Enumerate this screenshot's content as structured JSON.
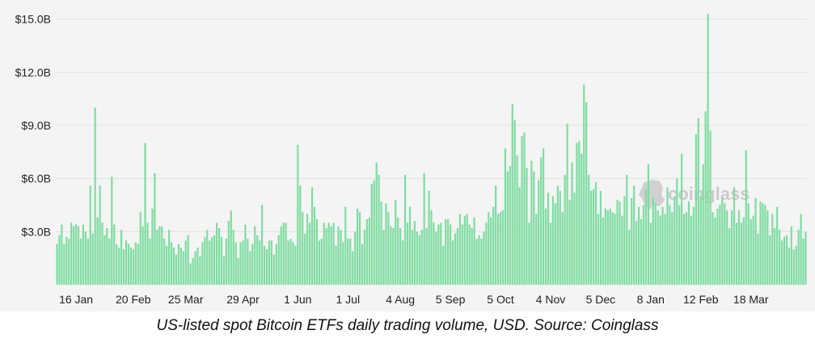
{
  "chart_data": {
    "type": "bar",
    "title": "",
    "xlabel": "",
    "ylabel": "",
    "ylim": [
      0,
      15.3
    ],
    "y_ticks": [
      3,
      6,
      9,
      12,
      15
    ],
    "y_tick_labels": [
      "$3.0B",
      "$6.0B",
      "$9.0B",
      "$12.0B",
      "$15.0B"
    ],
    "x_tick_labels": [
      "16 Jan",
      "20 Feb",
      "25 Mar",
      "29 Apr",
      "1 Jun",
      "1 Jul",
      "4 Aug",
      "5 Sep",
      "5 Oct",
      "4 Nov",
      "5 Dec",
      "8 Jan",
      "12 Feb",
      "18 Mar"
    ],
    "x_tick_bar_index": [
      8,
      32,
      54,
      78,
      101,
      122,
      144,
      165,
      186,
      207,
      228,
      249,
      270,
      291
    ],
    "series": [
      {
        "name": "Daily trading volume (USD billions)",
        "values": [
          2.3,
          2.8,
          3.4,
          2.3,
          2.7,
          2.6,
          3.5,
          3.3,
          3.4,
          3.3,
          2.6,
          3.4,
          3.0,
          2.6,
          5.6,
          2.9,
          10.0,
          3.8,
          5.6,
          3.5,
          2.8,
          3.2,
          2.6,
          6.1,
          3.4,
          2.3,
          2.1,
          3.1,
          2.0,
          2.5,
          2.3,
          2.1,
          2.0,
          2.4,
          2.3,
          4.1,
          3.3,
          8.0,
          3.5,
          2.6,
          4.3,
          6.3,
          3.1,
          3.3,
          3.3,
          2.6,
          2.2,
          3.1,
          2.4,
          2.1,
          1.7,
          2.3,
          2.1,
          1.9,
          2.5,
          2.8,
          1.2,
          1.5,
          1.9,
          2.1,
          1.6,
          2.4,
          2.7,
          3.1,
          2.5,
          2.7,
          2.8,
          3.5,
          3.2,
          2.7,
          1.6,
          2.6,
          3.6,
          4.2,
          3.1,
          2.4,
          1.5,
          2.4,
          2.5,
          3.4,
          2.6,
          1.9,
          2.3,
          3.3,
          2.8,
          2.5,
          4.5,
          2.2,
          2.0,
          2.5,
          2.5,
          1.7,
          2.3,
          2.8,
          3.3,
          3.5,
          3.5,
          2.5,
          2.6,
          2.4,
          2.2,
          7.9,
          5.6,
          4.1,
          2.9,
          4.0,
          3.5,
          5.5,
          4.4,
          3.7,
          2.5,
          2.6,
          3.5,
          3.2,
          3.5,
          3.3,
          3.5,
          2.2,
          3.3,
          3.1,
          2.4,
          4.4,
          2.6,
          2.6,
          1.9,
          3.0,
          4.3,
          4.1,
          2.3,
          3.1,
          3.7,
          3.8,
          5.7,
          5.9,
          6.9,
          6.2,
          4.7,
          3.1,
          4.6,
          4.1,
          3.3,
          3.2,
          4.8,
          3.8,
          3.2,
          2.5,
          6.2,
          3.5,
          4.4,
          3.1,
          3.6,
          3.0,
          2.8,
          3.1,
          6.3,
          3.2,
          5.3,
          4.2,
          3.5,
          3.0,
          3.4,
          3.5,
          2.2,
          3.7,
          3.7,
          3.4,
          2.5,
          2.9,
          3.2,
          4.0,
          3.4,
          3.9,
          4.0,
          3.4,
          3.2,
          3.8,
          2.6,
          2.8,
          2.6,
          3.0,
          3.5,
          4.1,
          3.8,
          4.4,
          5.6,
          4.0,
          4.1,
          4.2,
          7.7,
          6.4,
          6.7,
          10.2,
          9.3,
          7.3,
          5.5,
          8.4,
          8.6,
          6.6,
          3.5,
          7.0,
          6.4,
          4.0,
          5.9,
          7.2,
          7.7,
          4.3,
          5.2,
          3.5,
          5.0,
          4.6,
          5.6,
          5.3,
          4.1,
          6.2,
          9.1,
          4.8,
          6.9,
          5.2,
          8.0,
          8.1,
          7.4,
          11.3,
          10.3,
          6.2,
          5.3,
          5.4,
          5.8,
          4.0,
          5.3,
          3.8,
          4.3,
          4.2,
          4.3,
          4.1,
          4.0,
          4.8,
          4.7,
          3.9,
          5.0,
          6.2,
          3.1,
          4.9,
          5.6,
          3.6,
          4.4,
          3.7,
          4.5,
          5.4,
          6.8,
          3.5,
          4.9,
          4.6,
          4.2,
          3.9,
          4.4,
          4.0,
          5.5,
          4.5,
          4.1,
          5.0,
          6.0,
          4.5,
          7.4,
          4.0,
          4.1,
          4.7,
          3.9,
          4.4,
          8.5,
          9.4,
          5.0,
          6.8,
          9.8,
          15.3,
          8.7,
          4.1,
          3.8,
          4.3,
          4.5,
          4.9,
          4.6,
          4.2,
          3.2,
          4.2,
          5.5,
          3.5,
          4.2,
          3.5,
          3.8,
          7.6,
          4.6,
          3.7,
          3.9,
          4.9,
          2.9,
          4.7,
          4.6,
          4.5,
          4.2,
          2.8,
          4.0,
          3.2,
          4.4,
          3.1,
          2.5,
          2.7,
          2.8,
          2.1,
          3.3,
          2.0,
          2.2,
          3.1,
          4.0,
          2.6,
          3.0
        ]
      }
    ]
  },
  "watermark": {
    "text": "coinglass"
  },
  "caption": "US-listed spot Bitcoin ETFs daily trading volume, USD. Source: Coinglass",
  "colors": {
    "bar": "#7ddca0",
    "panel": "#f4f4f4",
    "grid": "#e2e2e2"
  }
}
